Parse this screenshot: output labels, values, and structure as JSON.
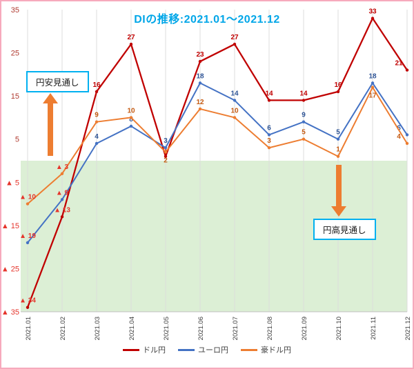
{
  "title": "DIの推移:2021.01～2021.12",
  "colors": {
    "title": "#00A6E8",
    "annotation_border": "#00B0F0",
    "arrow": "#ED7D31",
    "frame_border": "#F6A9BC",
    "axis_label_positive": "#B03A30",
    "negative_label": "#E5342B",
    "x_axis_label": "#404040",
    "gridline": "#DCDCDC",
    "negative_region": "#DCEFD5"
  },
  "chart_data": {
    "type": "line",
    "title": "DIの推移:2021.01～2021.12",
    "categories": [
      "2021.01",
      "2021.02",
      "2021.03",
      "2021.04",
      "2021.05",
      "2021.06",
      "2021.07",
      "2021.08",
      "2021.09",
      "2021.10",
      "2021.11",
      "2021.12"
    ],
    "series": [
      {
        "name": "ドル円",
        "color": "#C00000",
        "label_color": "#C00000",
        "values": [
          -34,
          -13,
          16,
          27,
          1,
          23,
          27,
          14,
          14,
          16,
          33,
          21
        ]
      },
      {
        "name": "ユーロ円",
        "color": "#4472C4",
        "label_color": "#2F5597",
        "values": [
          -19,
          -9,
          4,
          8,
          3,
          18,
          14,
          6,
          9,
          5,
          18,
          6
        ]
      },
      {
        "name": "豪ドル円",
        "color": "#ED7D31",
        "label_color": "#C55A11",
        "values": [
          -10,
          -3,
          9,
          10,
          2,
          12,
          10,
          3,
          5,
          1,
          17,
          4
        ]
      }
    ],
    "ylim": [
      -35,
      35
    ],
    "yticks": [
      35,
      25,
      15,
      5,
      -5,
      -15,
      -25,
      -35
    ],
    "negative_prefix": "▲ ",
    "grid": "vertical",
    "legend_position": "bottom",
    "negative_region_color": "#DCEFD5",
    "annotations": [
      {
        "text": "円安見通し",
        "arrow": "up"
      },
      {
        "text": "円高見通し",
        "arrow": "down"
      }
    ]
  }
}
